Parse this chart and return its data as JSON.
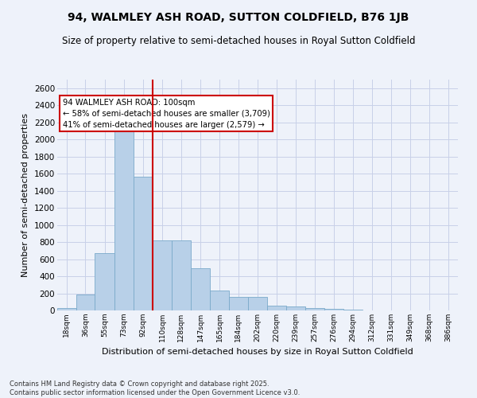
{
  "title": "94, WALMLEY ASH ROAD, SUTTON COLDFIELD, B76 1JB",
  "subtitle": "Size of property relative to semi-detached houses in Royal Sutton Coldfield",
  "xlabel": "Distribution of semi-detached houses by size in Royal Sutton Coldfield",
  "ylabel": "Number of semi-detached properties",
  "footnote": "Contains HM Land Registry data © Crown copyright and database right 2025.\nContains public sector information licensed under the Open Government Licence v3.0.",
  "bar_color": "#b8d0e8",
  "bar_edge_color": "#7aaaca",
  "background_color": "#eef2fa",
  "grid_color": "#c8d0e8",
  "vline_color": "#cc0000",
  "vline_x": 101,
  "annotation_text": "94 WALMLEY ASH ROAD: 100sqm\n← 58% of semi-detached houses are smaller (3,709)\n41% of semi-detached houses are larger (2,579) →",
  "annotation_box_color": "#ffffff",
  "annotation_border_color": "#cc0000",
  "bin_labels": [
    "18sqm",
    "36sqm",
    "55sqm",
    "73sqm",
    "92sqm",
    "110sqm",
    "128sqm",
    "147sqm",
    "165sqm",
    "184sqm",
    "202sqm",
    "220sqm",
    "239sqm",
    "257sqm",
    "276sqm",
    "294sqm",
    "312sqm",
    "331sqm",
    "349sqm",
    "368sqm",
    "386sqm"
  ],
  "bin_edges": [
    9,
    27,
    45,
    64,
    82,
    101,
    119,
    137,
    156,
    174,
    192,
    211,
    229,
    247,
    266,
    284,
    302,
    321,
    339,
    357,
    376,
    394
  ],
  "values": [
    25,
    185,
    670,
    2120,
    1560,
    820,
    820,
    490,
    235,
    155,
    155,
    55,
    45,
    30,
    18,
    8,
    4,
    2,
    0,
    4,
    0
  ],
  "ylim": [
    0,
    2700
  ],
  "yticks": [
    0,
    200,
    400,
    600,
    800,
    1000,
    1200,
    1400,
    1600,
    1800,
    2000,
    2200,
    2400,
    2600
  ]
}
